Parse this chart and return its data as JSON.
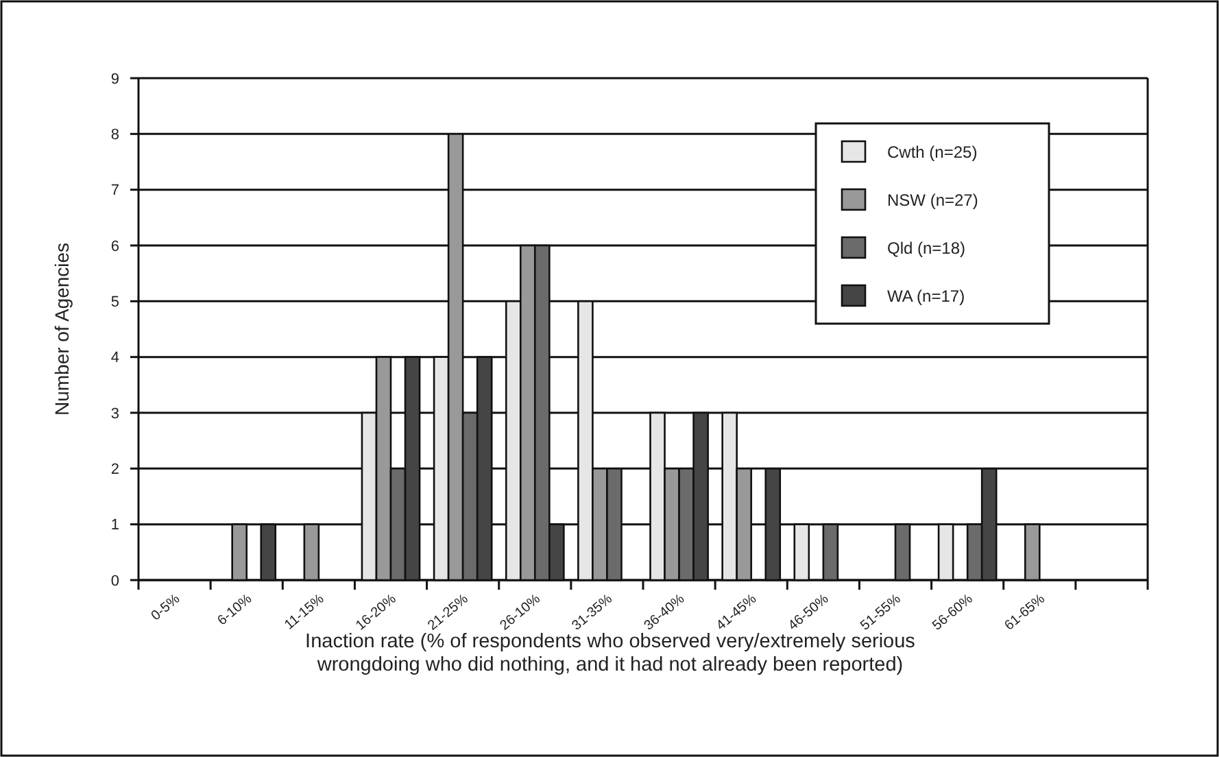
{
  "chart_data": {
    "type": "bar",
    "ylabel": "Number of Agencies",
    "xlabel": "Inaction rate (% of respondents who observed very/extremely serious\nwrongdoing who did nothing, and it had not already been reported)",
    "categories": [
      "0-5%",
      "6-10%",
      "11-15%",
      "16-20%",
      "21-25%",
      "26-10%",
      "31-35%",
      "36-40%",
      "41-45%",
      "46-50%",
      "51-55%",
      "56-60%",
      "61-65%",
      null
    ],
    "series": [
      {
        "name": "Cwth (n=25)",
        "color": "#e6e6e6",
        "values": [
          0,
          0,
          0,
          3,
          4,
          5,
          5,
          3,
          3,
          1,
          0,
          1,
          0,
          0
        ]
      },
      {
        "name": "NSW (n=27)",
        "color": "#999999",
        "values": [
          0,
          1,
          1,
          4,
          8,
          6,
          2,
          2,
          2,
          0,
          0,
          0,
          1,
          0
        ]
      },
      {
        "name": "Qld (n=18)",
        "color": "#6b6b6b",
        "values": [
          0,
          0,
          0,
          2,
          3,
          6,
          2,
          2,
          0,
          1,
          1,
          1,
          0,
          0
        ]
      },
      {
        "name": "WA (n=17)",
        "color": "#454545",
        "values": [
          0,
          1,
          0,
          4,
          4,
          1,
          0,
          3,
          2,
          0,
          0,
          2,
          0,
          0
        ]
      }
    ],
    "ylim": [
      0,
      9
    ],
    "yticks": [
      0,
      1,
      2,
      3,
      4,
      5,
      6,
      7,
      8,
      9
    ],
    "grid": "y",
    "legend": "top right"
  }
}
